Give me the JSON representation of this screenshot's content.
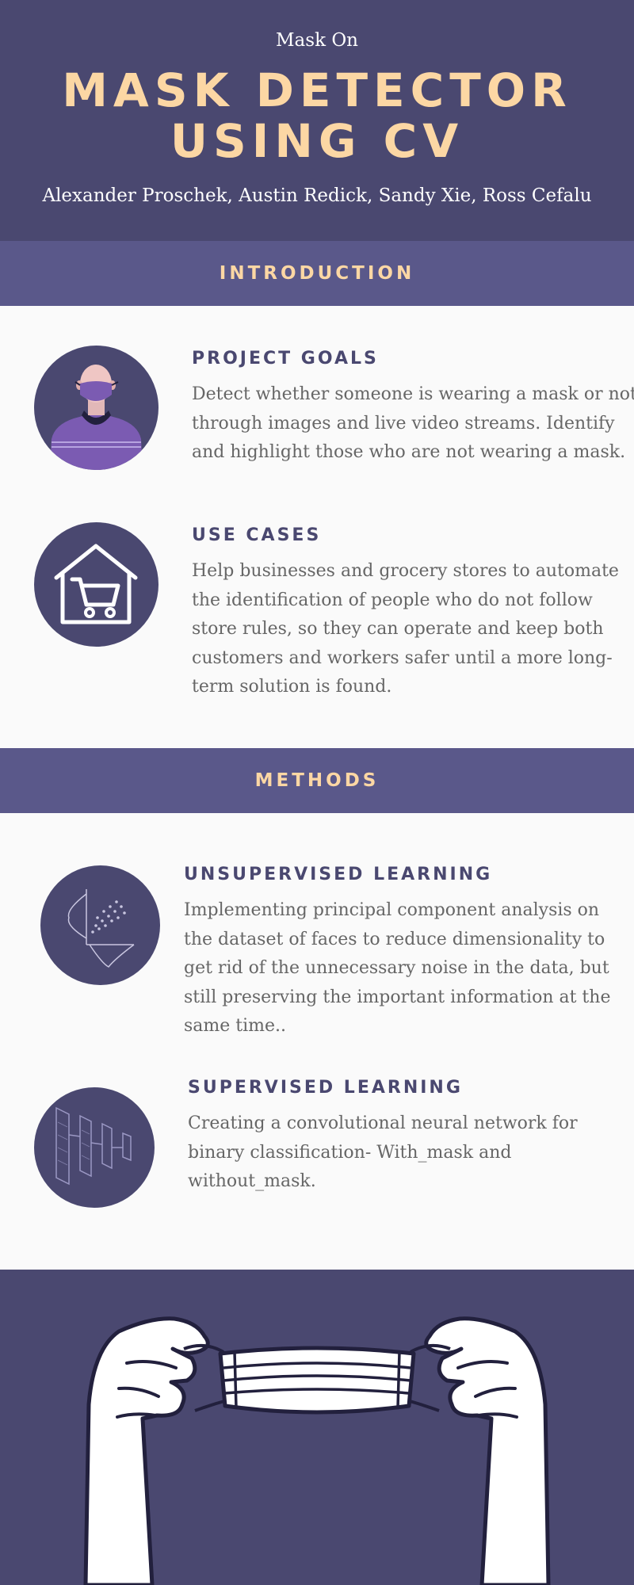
{
  "header": {
    "eyebrow": "Mask On",
    "title_line1": "MASK DETECTOR",
    "title_line2": "USING CV",
    "authors": "Alexander Proschek, Austin Redick, Sandy Xie, Ross Cefalu"
  },
  "introduction": {
    "bar_label": "INTRODUCTION",
    "items": [
      {
        "heading": "PROJECT GOALS",
        "body": "Detect whether someone is wearing a mask or not through images and live video streams. Identify and highlight those who are not wearing a mask.",
        "icon": "masked-person-icon"
      },
      {
        "heading": "USE CASES",
        "body": "Help businesses and grocery stores to automate the identification of people who do not follow store rules, so they can operate and keep both customers and workers safer until a more long-term solution is found.",
        "icon": "store-cart-icon"
      }
    ]
  },
  "methods": {
    "bar_label": "METHODS",
    "items": [
      {
        "heading": "UNSUPERVISED LEARNING",
        "body": "Implementing principal component analysis on the dataset of faces to reduce dimensionality to get rid of the unnecessary noise in the data, but still preserving the important information at the same time..",
        "icon": "scatter-distribution-icon"
      },
      {
        "heading": "SUPERVISED LEARNING",
        "body": "Creating a convolutional neural network for binary classification- With_mask and without_mask.",
        "icon": "neural-layers-icon"
      }
    ]
  },
  "footer": {
    "illustration": "hands-holding-mask-illustration"
  },
  "colors": {
    "header_bg": "#4a4870",
    "bar_bg": "#5a588a",
    "accent": "#fcd7a4",
    "heading": "#4a4870",
    "body_text": "#666666"
  }
}
